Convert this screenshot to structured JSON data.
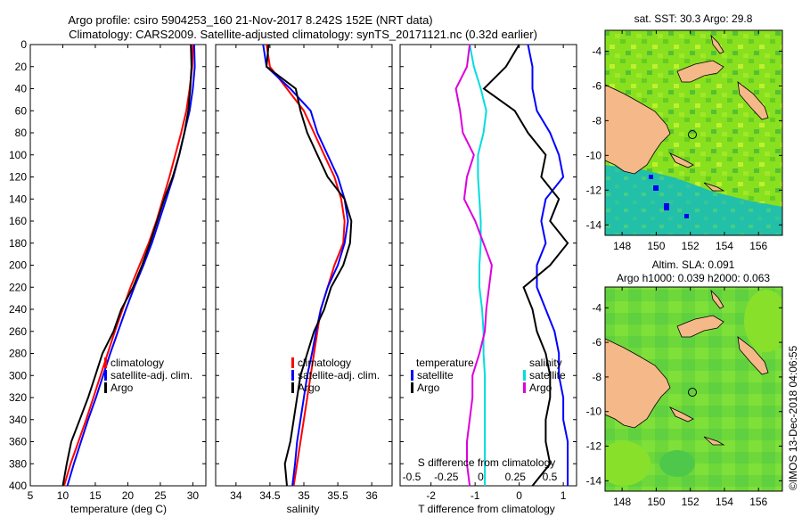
{
  "chart_data": [
    {
      "type": "line",
      "title": "Argo profile: csiro 5904253_160 21-Nov-2017 8.242S 152E (NRT data)",
      "subtitle": "Climatology: CARS2009. Satellite-adjusted climatology: synTS_20171121.nc (0.32d earlier)",
      "xlabel": "temperature (deg C)",
      "ylabel": "",
      "xlim": [
        5,
        32
      ],
      "ylim": [
        400,
        0
      ],
      "xticks": [
        "5",
        "10",
        "15",
        "20",
        "25",
        "30"
      ],
      "yticks": [
        "0",
        "20",
        "40",
        "60",
        "80",
        "100",
        "120",
        "140",
        "160",
        "180",
        "200",
        "220",
        "240",
        "260",
        "280",
        "300",
        "320",
        "340",
        "360",
        "380",
        "400"
      ],
      "legend": [
        "climatology",
        "satellite-adj. clim.",
        "Argo"
      ],
      "series": [
        {
          "name": "climatology",
          "color": "#ff0000",
          "x": [
            30.0,
            29.9,
            29.5,
            29.0,
            28.2,
            27.3,
            26.4,
            25.4,
            24.4,
            23.2,
            21.8,
            20.4,
            19.2,
            18.0,
            16.9,
            15.8,
            14.7,
            13.6,
            12.4,
            11.2,
            10.2
          ],
          "y": [
            0,
            20,
            40,
            60,
            80,
            100,
            120,
            140,
            160,
            180,
            200,
            220,
            240,
            260,
            280,
            300,
            320,
            340,
            360,
            380,
            400
          ]
        },
        {
          "name": "satellite-adj. clim.",
          "color": "#0000ff",
          "x": [
            30.2,
            30.3,
            30.0,
            29.5,
            28.7,
            27.9,
            27.0,
            25.9,
            24.8,
            23.7,
            22.4,
            21.0,
            19.7,
            18.5,
            17.3,
            16.2,
            15.1,
            13.9,
            12.8,
            11.7,
            10.7
          ],
          "y": [
            0,
            20,
            40,
            60,
            80,
            100,
            120,
            140,
            160,
            180,
            200,
            220,
            240,
            260,
            280,
            300,
            320,
            340,
            360,
            380,
            400
          ]
        },
        {
          "name": "Argo",
          "color": "#000000",
          "x": [
            29.7,
            29.8,
            29.6,
            29.3,
            28.7,
            27.9,
            26.9,
            25.6,
            24.5,
            23.4,
            22.2,
            20.8,
            19.0,
            17.8,
            16.1,
            15.0,
            13.9,
            12.6,
            11.3,
            10.6,
            10.0
          ],
          "y": [
            0,
            20,
            40,
            60,
            80,
            100,
            120,
            140,
            160,
            180,
            200,
            220,
            240,
            260,
            280,
            300,
            320,
            340,
            360,
            380,
            400
          ]
        }
      ]
    },
    {
      "type": "line",
      "xlabel": "salinity",
      "xlim": [
        33.7,
        36.3
      ],
      "ylim": [
        400,
        0
      ],
      "xticks": [
        "34",
        "34.5",
        "35",
        "35.5",
        "36"
      ],
      "legend": [
        "climatology",
        "satellite-adj. clim.",
        "Argo"
      ],
      "series": [
        {
          "name": "climatology",
          "color": "#ff0000",
          "x": [
            34.45,
            34.5,
            34.75,
            35.0,
            35.15,
            35.3,
            35.45,
            35.55,
            35.6,
            35.58,
            35.45,
            35.35,
            35.25,
            35.2,
            35.15,
            35.1,
            35.05,
            35.0,
            34.95,
            34.9,
            34.85
          ],
          "y": [
            0,
            20,
            40,
            60,
            80,
            100,
            120,
            140,
            160,
            180,
            200,
            220,
            240,
            260,
            280,
            300,
            320,
            340,
            360,
            380,
            400
          ]
        },
        {
          "name": "satellite-adj. clim.",
          "color": "#0000ff",
          "x": [
            34.4,
            34.45,
            34.8,
            35.1,
            35.2,
            35.35,
            35.5,
            35.6,
            35.65,
            35.6,
            35.5,
            35.35,
            35.25,
            35.18,
            35.12,
            35.05,
            35.0,
            34.95,
            34.9,
            34.87,
            34.83
          ],
          "y": [
            0,
            20,
            40,
            60,
            80,
            100,
            120,
            140,
            160,
            180,
            200,
            220,
            240,
            260,
            280,
            300,
            320,
            340,
            360,
            380,
            400
          ]
        },
        {
          "name": "Argo",
          "color": "#000000",
          "x": [
            34.48,
            34.45,
            34.88,
            34.95,
            35.05,
            35.2,
            35.35,
            35.6,
            35.7,
            35.68,
            35.58,
            35.4,
            35.3,
            35.15,
            35.05,
            34.95,
            34.9,
            34.85,
            34.8,
            34.72,
            34.75
          ],
          "y": [
            0,
            20,
            40,
            60,
            80,
            100,
            120,
            140,
            160,
            180,
            200,
            220,
            240,
            260,
            280,
            300,
            320,
            340,
            360,
            380,
            400
          ]
        }
      ]
    },
    {
      "type": "line",
      "xlabel": "T difference from climatology",
      "xlim": [
        -2.7,
        1.3
      ],
      "ylim": [
        400,
        0
      ],
      "xticks": [
        "-2",
        "-1",
        "0",
        "1"
      ],
      "secondary_xlabel": "S difference from climatology",
      "secondary_xticks": [
        "-0.5",
        "-0.25",
        "0",
        "0.25",
        "0.5"
      ],
      "legend_temperature_title": "temperature",
      "legend_salinity_title": "salinity",
      "legend_temperature": [
        "satellite",
        "Argo"
      ],
      "legend_salinity": [
        "satellite",
        "Argo"
      ],
      "series": [
        {
          "name": "temperature satellite",
          "color": "#0000ff",
          "x": [
            0.2,
            0.3,
            0.3,
            0.4,
            0.7,
            0.9,
            1.0,
            0.6,
            0.5,
            0.6,
            0.4,
            0.4,
            0.6,
            0.8,
            0.9,
            0.9,
            1.0,
            1.0,
            1.1,
            1.1,
            1.1
          ],
          "y": [
            0,
            20,
            40,
            60,
            80,
            100,
            120,
            140,
            160,
            180,
            200,
            220,
            240,
            260,
            280,
            300,
            320,
            340,
            360,
            380,
            400
          ]
        },
        {
          "name": "temperature Argo",
          "color": "#000000",
          "x": [
            0.0,
            -0.3,
            -0.8,
            -0.1,
            0.2,
            0.6,
            0.5,
            0.9,
            0.7,
            1.1,
            0.7,
            0.1,
            0.3,
            0.4,
            0.6,
            0.7,
            0.7,
            0.6,
            0.6,
            0.7,
            0.3
          ],
          "y": [
            0,
            20,
            40,
            60,
            80,
            100,
            120,
            140,
            160,
            180,
            200,
            220,
            240,
            260,
            280,
            300,
            320,
            340,
            360,
            380,
            400
          ]
        },
        {
          "name": "salinity satellite",
          "color": "#00dddd",
          "x": [
            -0.08,
            -0.05,
            0.0,
            0.04,
            0.02,
            -0.02,
            -0.02,
            -0.01,
            0.0,
            0.0,
            -0.01,
            -0.01,
            0.01,
            0.02,
            0.02,
            0.03,
            0.03,
            0.03,
            0.03,
            0.03,
            0.03
          ],
          "y": [
            0,
            20,
            40,
            60,
            80,
            100,
            120,
            140,
            160,
            180,
            200,
            220,
            240,
            260,
            280,
            300,
            320,
            340,
            360,
            380,
            400
          ]
        },
        {
          "name": "salinity Argo",
          "color": "#dd00dd",
          "x": [
            -0.08,
            -0.1,
            -0.18,
            -0.15,
            -0.13,
            -0.05,
            -0.1,
            -0.12,
            -0.04,
            0.02,
            0.08,
            0.06,
            0.04,
            0.03,
            -0.01,
            -0.06,
            -0.06,
            -0.08,
            -0.1,
            -0.1,
            -0.08
          ],
          "y": [
            0,
            20,
            40,
            60,
            80,
            100,
            120,
            140,
            160,
            180,
            200,
            220,
            240,
            260,
            280,
            300,
            320,
            340,
            360,
            380,
            400
          ]
        }
      ]
    },
    {
      "type": "heatmap",
      "title": "sat. SST: 30.3 Argo: 29.8",
      "xticks": [
        "148",
        "150",
        "152",
        "154",
        "156"
      ],
      "yticks": [
        "-4",
        "-6",
        "-8",
        "-10",
        "-12",
        "-14"
      ],
      "xlim": [
        147,
        157.4
      ],
      "ylim": [
        -14.6,
        -2.8
      ],
      "argo_position": [
        152.0,
        -8.24
      ]
    },
    {
      "type": "heatmap",
      "title": "Altim. SLA: 0.091",
      "subtitle": "Argo h1000: 0.039 h2000: 0.063",
      "xticks": [
        "148",
        "150",
        "152",
        "154",
        "156"
      ],
      "yticks": [
        "-4",
        "-6",
        "-8",
        "-10",
        "-12",
        "-14"
      ],
      "xlim": [
        147,
        157.4
      ],
      "ylim": [
        -14.6,
        -2.8
      ],
      "argo_position": [
        152.0,
        -8.24
      ]
    }
  ],
  "credit": "©IMOS 13-Dec-2018 04:06:55"
}
